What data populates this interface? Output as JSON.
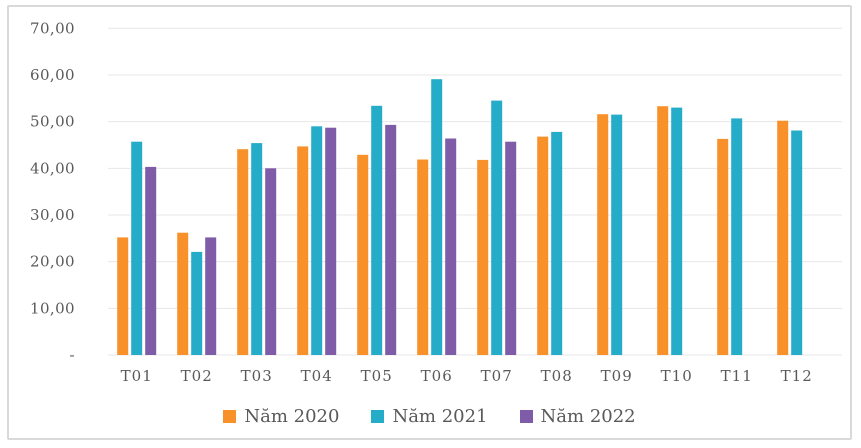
{
  "chart_data": {
    "type": "bar",
    "categories": [
      "T01",
      "T02",
      "T03",
      "T04",
      "T05",
      "T06",
      "T07",
      "T08",
      "T09",
      "T10",
      "T11",
      "T12"
    ],
    "series": [
      {
        "name": "Năm 2020",
        "color": "#F89129",
        "values": [
          25.2,
          26.2,
          44.1,
          44.7,
          42.9,
          41.9,
          41.8,
          46.8,
          51.6,
          53.3,
          46.3,
          50.2
        ]
      },
      {
        "name": "Năm 2021",
        "color": "#25ACC9",
        "values": [
          45.7,
          22.1,
          45.4,
          49.0,
          53.4,
          59.1,
          54.5,
          47.8,
          51.5,
          53.0,
          50.7,
          48.1
        ]
      },
      {
        "name": "Năm 2022",
        "color": "#7F5CA8",
        "values": [
          40.3,
          25.2,
          40.0,
          48.7,
          49.3,
          46.4,
          45.7,
          null,
          null,
          null,
          null,
          null
        ]
      }
    ],
    "title": "",
    "xlabel": "",
    "ylabel": "",
    "ylim": [
      0,
      70
    ],
    "ytick_step": 10,
    "y_tick_labels": [
      "-",
      "10,00",
      "20,00",
      "30,00",
      "40,00",
      "50,00",
      "60,00",
      "70,00"
    ],
    "grid": true,
    "legend_position": "bottom",
    "number_format": "comma-decimal",
    "axis_text_color": "#595959",
    "gridline_color": "#E7E7E7",
    "frame_border_color": "#D9D9D9"
  }
}
